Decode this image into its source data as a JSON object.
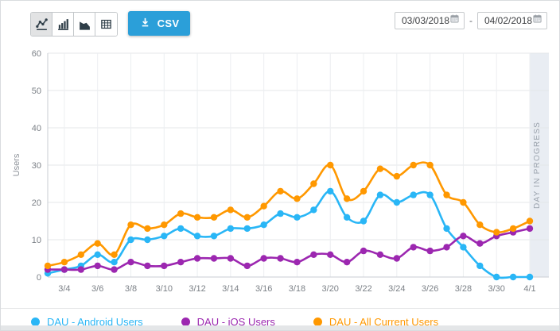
{
  "toolbar": {
    "chart_types": [
      {
        "name": "line-chart",
        "selected": true
      },
      {
        "name": "bar-chart",
        "selected": false
      },
      {
        "name": "area-chart",
        "selected": false
      },
      {
        "name": "table",
        "selected": false
      }
    ],
    "csv_label": "CSV",
    "date_from": "03/03/2018",
    "date_separator": "-",
    "date_to": "04/02/2018"
  },
  "colors": {
    "csv_button": "#2b9fd9",
    "toolbar_icon": "#2f3e48",
    "android_series": "#29b6f6",
    "ios_series": "#9c27b0",
    "all_users_series": "#ff9800"
  },
  "chart_data": {
    "type": "line",
    "title": "",
    "xlabel": "",
    "ylabel": "Users",
    "ylim": [
      0,
      60
    ],
    "yticks": [
      0,
      10,
      20,
      30,
      40,
      50,
      60
    ],
    "grid": true,
    "legend_position": "bottom",
    "x": [
      "3/3",
      "3/4",
      "3/5",
      "3/6",
      "3/7",
      "3/8",
      "3/9",
      "3/10",
      "3/11",
      "3/12",
      "3/13",
      "3/14",
      "3/15",
      "3/16",
      "3/17",
      "3/18",
      "3/19",
      "3/20",
      "3/21",
      "3/22",
      "3/23",
      "3/24",
      "3/25",
      "3/26",
      "3/27",
      "3/28",
      "3/29",
      "3/30",
      "3/31",
      "4/1"
    ],
    "xticks": [
      "3/4",
      "3/6",
      "3/8",
      "3/10",
      "3/12",
      "3/14",
      "3/16",
      "3/18",
      "3/20",
      "3/22",
      "3/24",
      "3/26",
      "3/28",
      "3/30",
      "4/1"
    ],
    "annotation_band": {
      "label": "DAY IN PROGRESS",
      "color": "#e9edf3",
      "text_color": "#9aa2ac",
      "start_at_x": "4/1"
    },
    "series": [
      {
        "name": "DAU - Android Users",
        "color": "#29b6f6",
        "values": [
          1,
          2,
          3,
          6,
          4,
          10,
          10,
          11,
          13,
          11,
          11,
          13,
          13,
          14,
          17,
          16,
          18,
          23,
          16,
          15,
          22,
          20,
          22,
          22,
          13,
          8,
          3,
          0,
          0,
          0
        ]
      },
      {
        "name": "DAU - iOS Users",
        "color": "#9c27b0",
        "values": [
          2,
          2,
          2,
          3,
          2,
          4,
          3,
          3,
          4,
          5,
          5,
          5,
          3,
          5,
          5,
          4,
          6,
          6,
          4,
          7,
          6,
          5,
          8,
          7,
          8,
          11,
          9,
          11,
          12,
          13
        ]
      },
      {
        "name": "DAU - All Current Users",
        "color": "#ff9800",
        "values": [
          3,
          4,
          6,
          9,
          6,
          14,
          13,
          14,
          17,
          16,
          16,
          18,
          16,
          19,
          23,
          21,
          25,
          30,
          21,
          23,
          29,
          27,
          30,
          30,
          22,
          20,
          14,
          12,
          13,
          15
        ]
      }
    ]
  }
}
